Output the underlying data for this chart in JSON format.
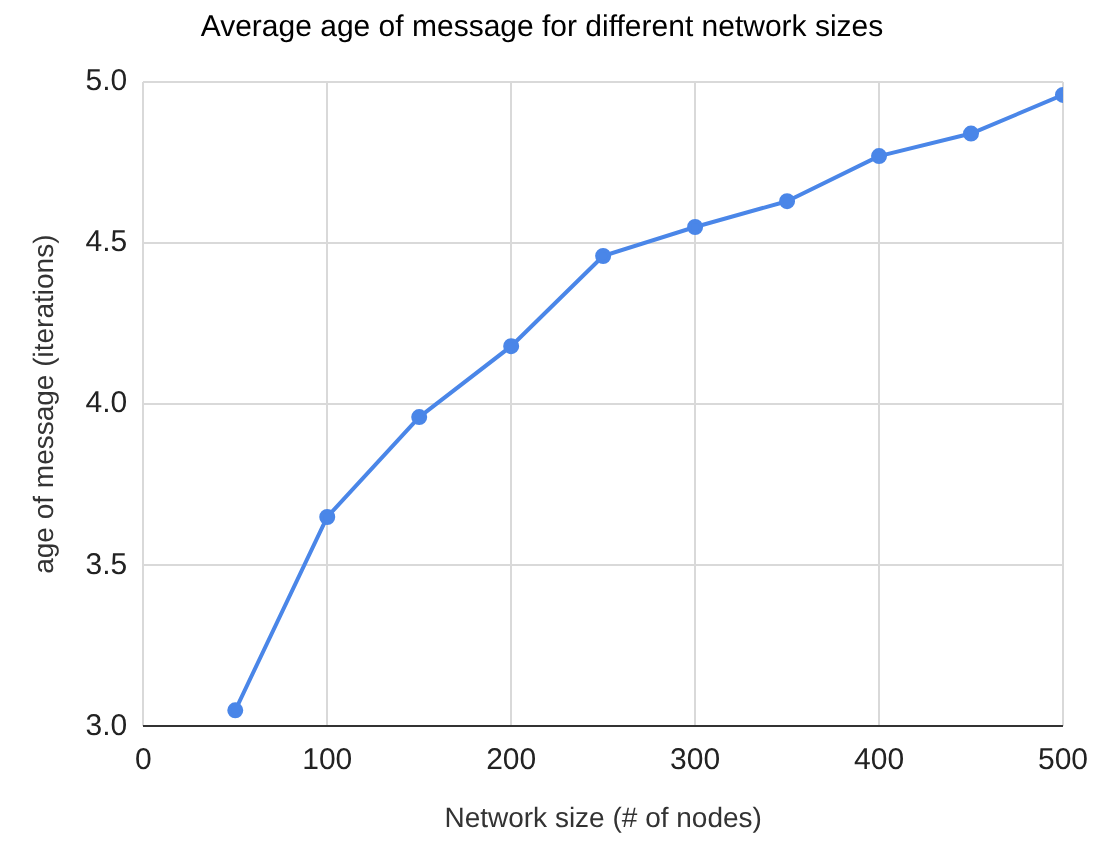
{
  "chart_data": {
    "type": "line",
    "title": "Average age of message for different network sizes",
    "xlabel": "Network size (# of nodes)",
    "ylabel": "age of message (iterations)",
    "x": [
      50,
      100,
      150,
      200,
      250,
      300,
      350,
      400,
      450,
      500
    ],
    "series": [
      {
        "color": "#4a86e8",
        "values": [
          3.05,
          3.65,
          3.96,
          4.18,
          4.46,
          4.55,
          4.63,
          4.77,
          4.84,
          4.96
        ]
      }
    ],
    "xlim": [
      0,
      500
    ],
    "xticks": [
      0,
      100,
      200,
      300,
      400,
      500
    ],
    "ylim": [
      3,
      5
    ],
    "yticks": [
      {
        "value": 3,
        "label": "3.0"
      },
      {
        "value": 3.5,
        "label": "3.5"
      },
      {
        "value": 4,
        "label": "4.0"
      },
      {
        "value": 4.5,
        "label": "4.5"
      },
      {
        "value": 5,
        "label": "5.0"
      }
    ],
    "grid": true,
    "legend": false,
    "marker": "circle",
    "line_style": "solid"
  }
}
